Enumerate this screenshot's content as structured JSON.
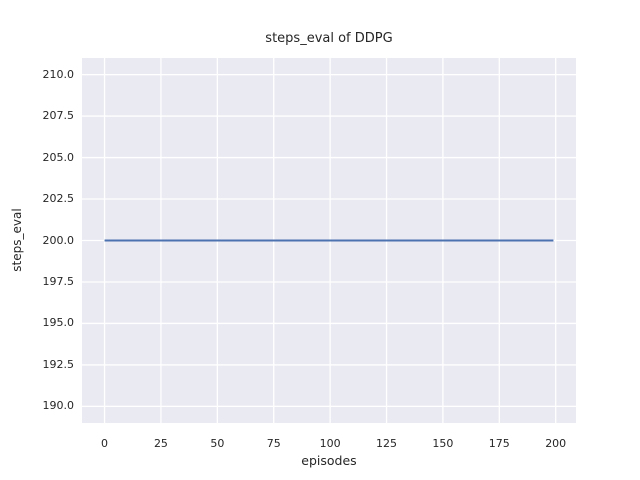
{
  "chart_data": {
    "type": "line",
    "title": "steps_eval of DDPG",
    "xlabel": "episodes",
    "ylabel": "steps_eval",
    "series": [
      {
        "name": "steps_eval of DDPG",
        "x": [
          0,
          199
        ],
        "y": [
          200,
          200
        ],
        "color": "#4C72B0",
        "note": "constant horizontal line at 200 from episode 0 to 199"
      }
    ],
    "xlim": [
      -10,
      209
    ],
    "ylim": [
      189,
      211
    ],
    "xticks": {
      "values": [
        0,
        25,
        50,
        75,
        100,
        125,
        150,
        175,
        200
      ],
      "labels": [
        "0",
        "25",
        "50",
        "75",
        "100",
        "125",
        "150",
        "175",
        "200"
      ]
    },
    "yticks": {
      "values": [
        190,
        192.5,
        195,
        197.5,
        200,
        202.5,
        205,
        207.5,
        210
      ],
      "labels": [
        "190.0",
        "192.5",
        "195.0",
        "197.5",
        "200.0",
        "202.5",
        "205.0",
        "207.5",
        "210.0"
      ]
    },
    "grid": true,
    "legend": "none",
    "style": {
      "plot_background": "#EAEAF2",
      "grid_color": "#FFFFFF",
      "line_width": 2,
      "text_color": "#262626",
      "figure_background": "#FFFFFF"
    }
  }
}
